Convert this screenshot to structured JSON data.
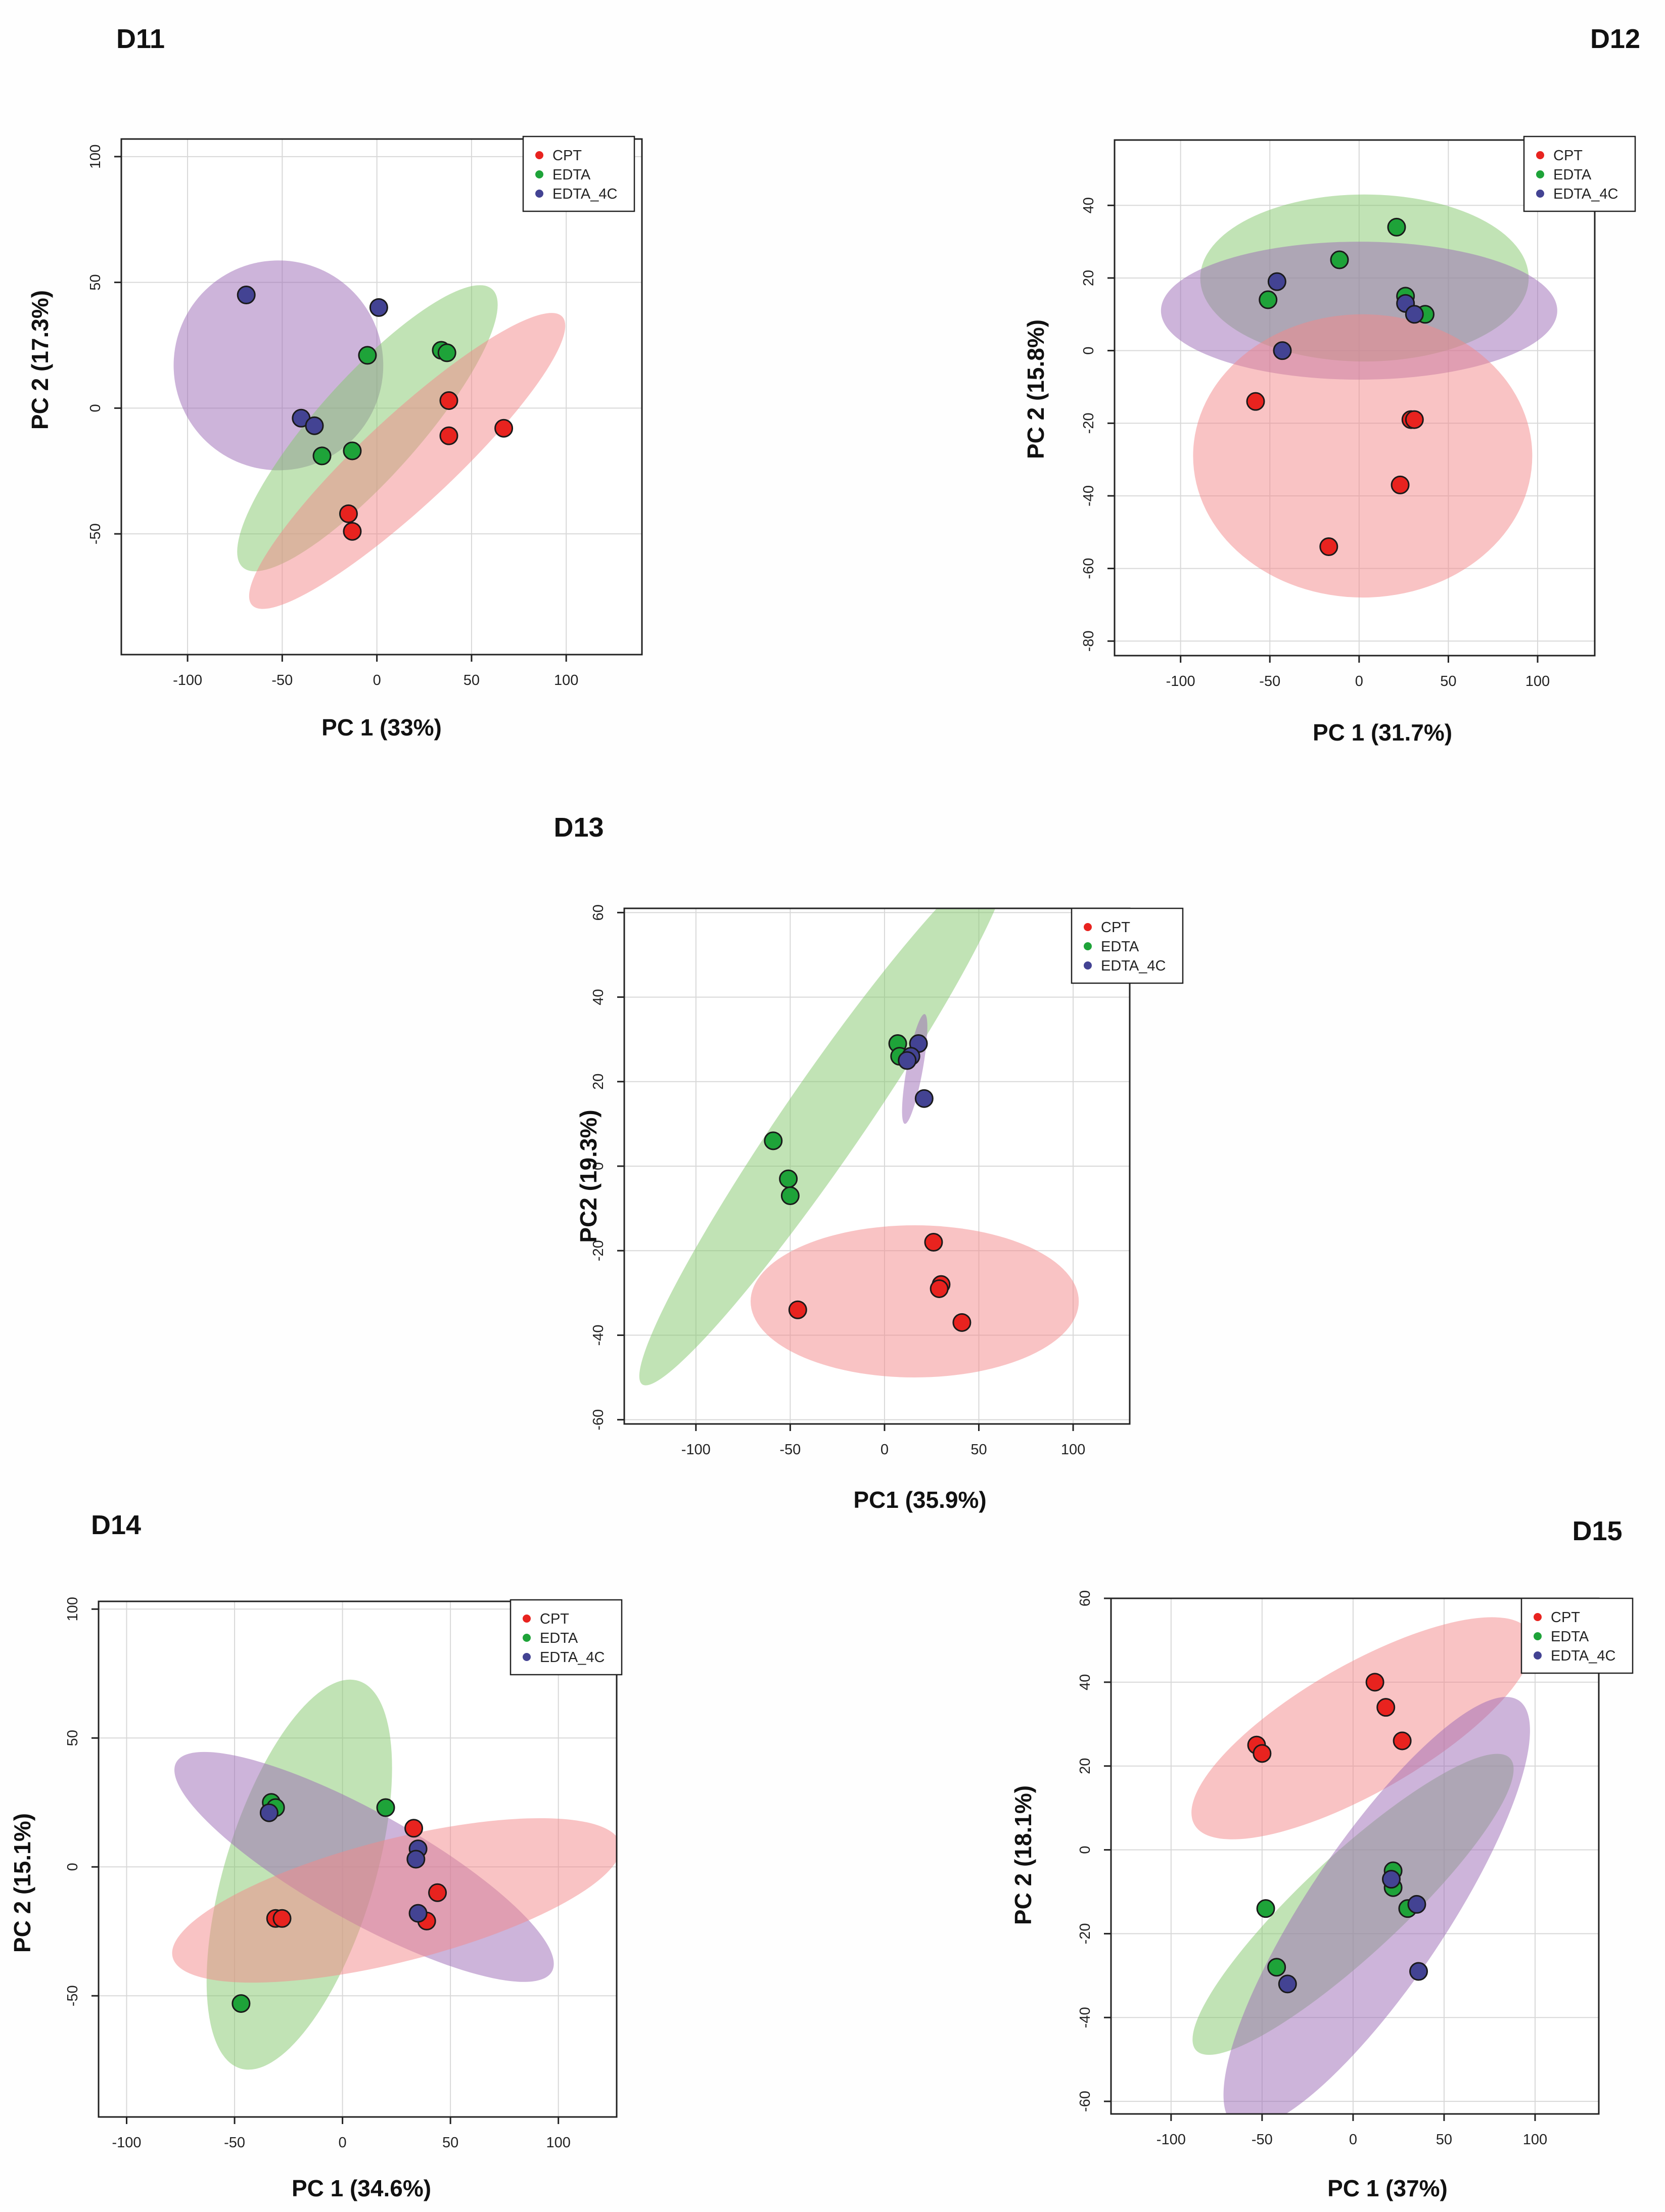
{
  "chart_data": [
    {
      "type": "scatter",
      "title": "D11",
      "xlabel": "PC 1 (33%)",
      "ylabel": "PC 2 (17.3%)",
      "xlim": [
        -135,
        140
      ],
      "ylim": [
        -98,
        107
      ],
      "xticks": [
        -100,
        -50,
        0,
        50,
        100
      ],
      "yticks": [
        -50,
        0,
        50,
        100
      ],
      "legend": [
        "CPT",
        "EDTA",
        "EDTA_4C"
      ],
      "series": [
        {
          "name": "CPT",
          "color": "#e8231f",
          "points": [
            [
              38,
              3
            ],
            [
              67,
              -8
            ],
            [
              38,
              -11
            ],
            [
              -15,
              -42
            ],
            [
              -13,
              -49
            ]
          ]
        },
        {
          "name": "EDTA",
          "color": "#1ea339",
          "points": [
            [
              34,
              23
            ],
            [
              37,
              22
            ],
            [
              -5,
              21
            ],
            [
              -13,
              -17
            ],
            [
              -29,
              -19
            ]
          ]
        },
        {
          "name": "EDTA_4C",
          "color": "#434393",
          "points": [
            [
              -69,
              45
            ],
            [
              1,
              40
            ],
            [
              -40,
              -4
            ],
            [
              -33,
              -7
            ]
          ]
        }
      ],
      "ellipses": [
        {
          "series": "EDTA_4C",
          "cx": -52,
          "cy": 17,
          "rx": 42,
          "ry": 55,
          "angle_deg": -80,
          "color": "#9b6ab5"
        },
        {
          "series": "EDTA",
          "cx": -5,
          "cy": -8,
          "rx": 86,
          "ry": 23,
          "angle_deg": 40,
          "color": "#84c86c"
        },
        {
          "series": "CPT",
          "cx": 16,
          "cy": -21,
          "rx": 100,
          "ry": 20,
          "angle_deg": 35,
          "color": "#f4878a"
        }
      ]
    },
    {
      "type": "scatter",
      "title": "D12",
      "xlabel": "PC 1 (31.7%)",
      "ylabel": "PC 2 (15.8%)",
      "xlim": [
        -137,
        132
      ],
      "ylim": [
        -84,
        58
      ],
      "xticks": [
        -100,
        -50,
        0,
        50,
        100
      ],
      "yticks": [
        -80,
        -60,
        -40,
        -20,
        0,
        20,
        40
      ],
      "legend": [
        "CPT",
        "EDTA",
        "EDTA_4C"
      ],
      "series": [
        {
          "name": "CPT",
          "color": "#e8231f",
          "points": [
            [
              -58,
              -14
            ],
            [
              29,
              -19
            ],
            [
              31,
              -19
            ],
            [
              23,
              -37
            ],
            [
              -17,
              -54
            ]
          ]
        },
        {
          "name": "EDTA",
          "color": "#1ea339",
          "points": [
            [
              21,
              34
            ],
            [
              -11,
              25
            ],
            [
              -51,
              14
            ],
            [
              26,
              15
            ],
            [
              37,
              10
            ]
          ]
        },
        {
          "name": "EDTA_4C",
          "color": "#434393",
          "points": [
            [
              -46,
              19
            ],
            [
              26,
              13
            ],
            [
              31,
              10
            ],
            [
              -43,
              0
            ]
          ]
        }
      ],
      "ellipses": [
        {
          "series": "EDTA",
          "cx": 3,
          "cy": 20,
          "rx": 92,
          "ry": 23,
          "angle_deg": 0,
          "color": "#84c86c"
        },
        {
          "series": "EDTA_4C",
          "cx": 0,
          "cy": 11,
          "rx": 111,
          "ry": 19,
          "angle_deg": 0,
          "color": "#9b6ab5"
        },
        {
          "series": "CPT",
          "cx": 2,
          "cy": -29,
          "rx": 95,
          "ry": 39,
          "angle_deg": 0,
          "color": "#f4878a"
        }
      ]
    },
    {
      "type": "scatter",
      "title": "D13",
      "xlabel": "PC1 (35.9%)",
      "ylabel": "PC2 (19.3%)",
      "xlim": [
        -138,
        130
      ],
      "ylim": [
        -61,
        61
      ],
      "xticks": [
        -100,
        -50,
        0,
        50,
        100
      ],
      "yticks": [
        -60,
        -40,
        -20,
        0,
        20,
        40,
        60
      ],
      "legend": [
        "CPT",
        "EDTA",
        "EDTA_4C"
      ],
      "series": [
        {
          "name": "CPT",
          "color": "#e8231f",
          "points": [
            [
              26,
              -18
            ],
            [
              30,
              -28
            ],
            [
              29,
              -29
            ],
            [
              -46,
              -34
            ],
            [
              41,
              -37
            ]
          ]
        },
        {
          "name": "EDTA",
          "color": "#1ea339",
          "points": [
            [
              7,
              29
            ],
            [
              8,
              26
            ],
            [
              -59,
              6
            ],
            [
              -51,
              -3
            ],
            [
              -50,
              -7
            ]
          ]
        },
        {
          "name": "EDTA_4C",
          "color": "#434393",
          "points": [
            [
              18,
              29
            ],
            [
              14,
              26
            ],
            [
              12,
              25
            ],
            [
              21,
              16
            ]
          ]
        }
      ],
      "ellipses": [
        {
          "series": "EDTA",
          "cx": -32,
          "cy": 11,
          "rx": 115,
          "ry": 14,
          "angle_deg": 33,
          "color": "#84c86c"
        },
        {
          "series": "EDTA_4C",
          "cx": 16,
          "cy": 23,
          "rx": 14,
          "ry": 4,
          "angle_deg": 68,
          "color": "#9b6ab5"
        },
        {
          "series": "CPT",
          "cx": 16,
          "cy": -32,
          "rx": 87,
          "ry": 18,
          "angle_deg": 0,
          "color": "#f4878a"
        }
      ]
    },
    {
      "type": "scatter",
      "title": "D14",
      "xlabel": "PC 1 (34.6%)",
      "ylabel": "PC 2 (15.1%)",
      "xlim": [
        -113,
        127
      ],
      "ylim": [
        -97,
        103
      ],
      "xticks": [
        -100,
        -50,
        0,
        50,
        100
      ],
      "yticks": [
        -50,
        0,
        50,
        100
      ],
      "legend": [
        "CPT",
        "EDTA",
        "EDTA_4C"
      ],
      "series": [
        {
          "name": "CPT",
          "color": "#e8231f",
          "points": [
            [
              33,
              15
            ],
            [
              44,
              -10
            ],
            [
              -31,
              -20
            ],
            [
              -28,
              -20
            ],
            [
              39,
              -21
            ]
          ]
        },
        {
          "name": "EDTA",
          "color": "#1ea339",
          "points": [
            [
              -33,
              25
            ],
            [
              -31,
              23
            ],
            [
              20,
              23
            ],
            [
              -47,
              -53
            ]
          ]
        },
        {
          "name": "EDTA_4C",
          "color": "#434393",
          "points": [
            [
              -34,
              21
            ],
            [
              35,
              7
            ],
            [
              34,
              3
            ],
            [
              35,
              -18
            ]
          ]
        }
      ],
      "ellipses": [
        {
          "series": "EDTA",
          "cx": -20,
          "cy": -3,
          "rx": 80,
          "ry": 34,
          "angle_deg": 70,
          "color": "#84c86c"
        },
        {
          "series": "EDTA_4C",
          "cx": 10,
          "cy": 0,
          "rx": 96,
          "ry": 22,
          "angle_deg": -25,
          "color": "#9b6ab5"
        },
        {
          "series": "CPT",
          "cx": 25,
          "cy": -13,
          "rx": 106,
          "ry": 24,
          "angle_deg": 12,
          "color": "#f4878a"
        }
      ]
    },
    {
      "type": "scatter",
      "title": "D15",
      "xlabel": "PC 1 (37%)",
      "ylabel": "PC 2 (18.1%)",
      "xlim": [
        -133,
        135
      ],
      "ylim": [
        -63,
        60
      ],
      "xticks": [
        -100,
        -50,
        0,
        50,
        100
      ],
      "yticks": [
        -60,
        -40,
        -20,
        0,
        20,
        40,
        60
      ],
      "legend": [
        "CPT",
        "EDTA",
        "EDTA_4C"
      ],
      "series": [
        {
          "name": "CPT",
          "color": "#e8231f",
          "points": [
            [
              12,
              40
            ],
            [
              18,
              34
            ],
            [
              27,
              26
            ],
            [
              -53,
              25
            ],
            [
              -50,
              23
            ]
          ]
        },
        {
          "name": "EDTA",
          "color": "#1ea339",
          "points": [
            [
              22,
              -5
            ],
            [
              22,
              -9
            ],
            [
              30,
              -14
            ],
            [
              -48,
              -14
            ],
            [
              -42,
              -28
            ]
          ]
        },
        {
          "name": "EDTA_4C",
          "color": "#434393",
          "points": [
            [
              21,
              -7
            ],
            [
              35,
              -13
            ],
            [
              -36,
              -32
            ],
            [
              36,
              -29
            ]
          ]
        }
      ],
      "ellipses": [
        {
          "series": "CPT",
          "cx": 5,
          "cy": 29,
          "rx": 95,
          "ry": 17,
          "angle_deg": 14,
          "color": "#f4878a"
        },
        {
          "series": "EDTA",
          "cx": 0,
          "cy": -13,
          "rx": 93,
          "ry": 15,
          "angle_deg": 22,
          "color": "#84c86c"
        },
        {
          "series": "EDTA_4C",
          "cx": 13,
          "cy": -15,
          "rx": 93,
          "ry": 25,
          "angle_deg": 33,
          "color": "#9b6ab5"
        }
      ]
    }
  ]
}
